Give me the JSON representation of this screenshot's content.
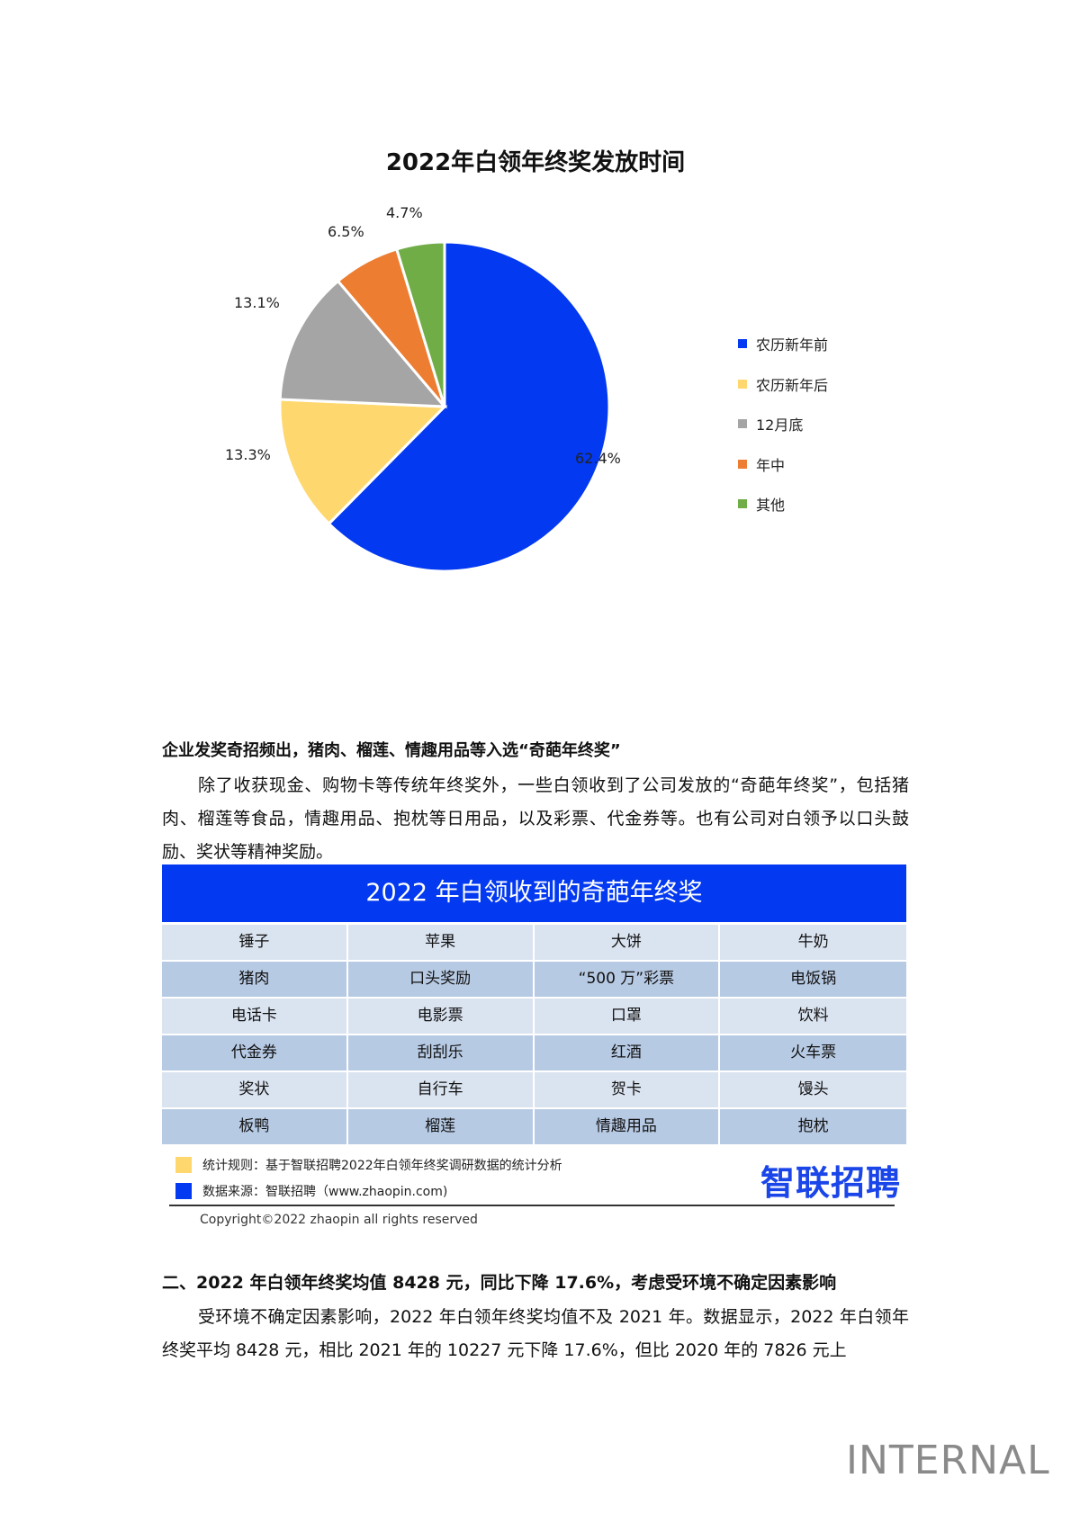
{
  "chart_data": {
    "type": "pie",
    "title": "2022年白领年终奖发放时间",
    "categories": [
      "农历新年前",
      "农历新年后",
      "12月底",
      "年中",
      "其他"
    ],
    "values": [
      62.4,
      13.3,
      13.1,
      6.5,
      4.7
    ],
    "labels": [
      "62.4%",
      "13.3%",
      "13.1%",
      "6.5%",
      "4.7%"
    ],
    "colors": [
      "#0339f0",
      "#fed86f",
      "#a5a5a5",
      "#ed7d31",
      "#70ad47"
    ],
    "legend_position": "right",
    "unit": "%"
  },
  "section1": {
    "heading": "企业发奖奇招频出，猪肉、榴莲、情趣用品等入选“奇葩年终奖”",
    "paragraph": "除了收获现金、购物卡等传统年终奖外，一些白领收到了公司发放的“奇葩年终奖”，包括猪肉、榴莲等食品，情趣用品、抱枕等日用品，以及彩票、代金券等。也有公司对白领予以口头鼓励、奖状等精神奖励。"
  },
  "award_table": {
    "title": "2022 年白领收到的奇葩年终奖",
    "rows": [
      [
        "锤子",
        "苹果",
        "大饼",
        "牛奶"
      ],
      [
        "猪肉",
        "口头奖励",
        "“500 万”彩票",
        "电饭锅"
      ],
      [
        "电话卡",
        "电影票",
        "口罩",
        "饮料"
      ],
      [
        "代金券",
        "刮刮乐",
        "红酒",
        "火车票"
      ],
      [
        "奖状",
        "自行车",
        "贺卡",
        "馒头"
      ],
      [
        "板鸭",
        "榴莲",
        "情趣用品",
        "抱枕"
      ]
    ],
    "header_color": "#0339f0",
    "row_colors": [
      "#dae3f0",
      "#b7cae4"
    ]
  },
  "notes": {
    "rule": "统计规则：基于智联招聘2022年白领年终奖调研数据的统计分析",
    "source": "数据来源：智联招聘（www.zhaopin.com)",
    "rule_color": "#fed86f",
    "source_color": "#0339f0",
    "brand": "智联招聘",
    "copyright": "Copyright©2022 zhaopin all rights reserved"
  },
  "section2": {
    "heading": "二、2022 年白领年终奖均值 8428 元，同比下降 17.6%，考虑受环境不确定因素影响",
    "paragraph": "受环境不确定因素影响，2022 年白领年终奖均值不及 2021 年。数据显示，2022 年白领年终奖平均 8428 元，相比 2021 年的 10227 元下降 17.6%，但比 2020 年的 7826 元上"
  },
  "watermark": "INTERNAL"
}
